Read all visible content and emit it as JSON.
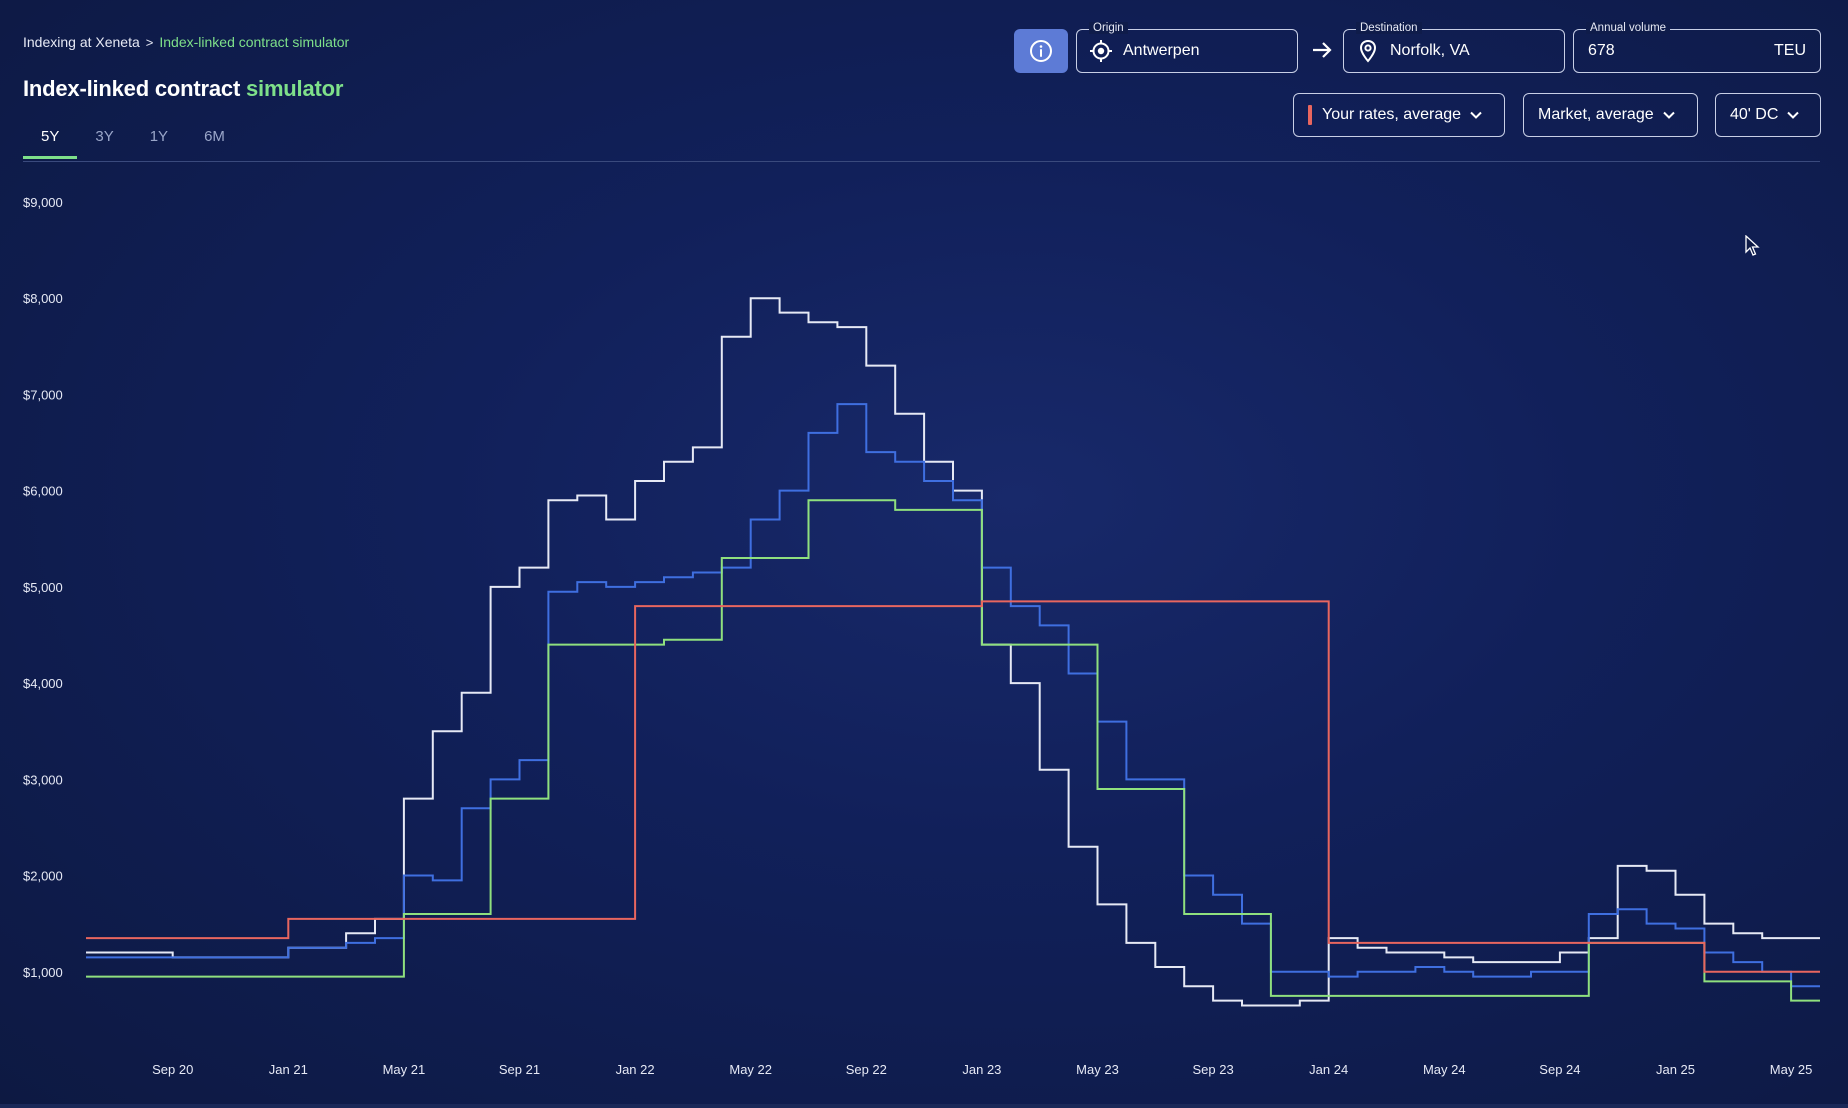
{
  "breadcrumb": {
    "root": "Indexing at Xeneta",
    "separator": ">",
    "current": "Index-linked contract simulator"
  },
  "title": {
    "main": "Index-linked contract",
    "accent": "simulator"
  },
  "tabs": [
    {
      "label": "5Y",
      "active": true
    },
    {
      "label": "3Y",
      "active": false
    },
    {
      "label": "1Y",
      "active": false
    },
    {
      "label": "6M",
      "active": false
    }
  ],
  "origin": {
    "label": "Origin",
    "value": "Antwerpen",
    "icon": "crosshair-icon"
  },
  "destination": {
    "label": "Destination",
    "value": "Norfolk, VA",
    "icon": "map-pin-icon"
  },
  "volume": {
    "label": "Annual volume",
    "value": "678",
    "unit": "TEU"
  },
  "filters": {
    "rates": "Your rates, average",
    "market": "Market, average",
    "container": "40' DC"
  },
  "colors": {
    "background": "#0f1b46",
    "accent_green": "#7ee08a",
    "info_button": "#5d7bd6",
    "series_white": "#e6e9f5",
    "series_blue": "#3f6fe0",
    "series_green": "#8fe07e",
    "series_red": "#e8665f"
  },
  "chart_data": {
    "type": "line",
    "step": true,
    "x_unit": "month",
    "x_range": [
      "2020-06",
      "2025-06"
    ],
    "ylim": [
      0,
      9000
    ],
    "y_ticks": [
      "$1,000",
      "$2,000",
      "$3,000",
      "$4,000",
      "$5,000",
      "$6,000",
      "$7,000",
      "$8,000",
      "$9,000"
    ],
    "y_tick_values": [
      1000,
      2000,
      3000,
      4000,
      5000,
      6000,
      7000,
      8000,
      9000
    ],
    "x_ticks": [
      "Sep 20",
      "Jan 21",
      "May 21",
      "Sep 21",
      "Jan 22",
      "May 22",
      "Sep 22",
      "Jan 23",
      "May 23",
      "Sep 23",
      "Jan 24",
      "May 24",
      "Sep 24",
      "Jan 25",
      "May 25"
    ],
    "x_tick_values": [
      "2020-09",
      "2021-01",
      "2021-05",
      "2021-09",
      "2022-01",
      "2022-05",
      "2022-09",
      "2023-01",
      "2023-05",
      "2023-09",
      "2024-01",
      "2024-05",
      "2024-09",
      "2025-01",
      "2025-05"
    ],
    "grid": false,
    "series": [
      {
        "color": "#e6e9f5",
        "x": [
          "2020-06",
          "2020-09",
          "2021-01",
          "2021-03",
          "2021-04",
          "2021-05",
          "2021-06",
          "2021-07",
          "2021-08",
          "2021-09",
          "2021-10",
          "2021-11",
          "2021-12",
          "2022-01",
          "2022-02",
          "2022-03",
          "2022-04",
          "2022-05",
          "2022-06",
          "2022-07",
          "2022-08",
          "2022-09",
          "2022-10",
          "2022-11",
          "2022-12",
          "2023-01",
          "2023-02",
          "2023-03",
          "2023-04",
          "2023-05",
          "2023-06",
          "2023-07",
          "2023-08",
          "2023-09",
          "2023-10",
          "2023-11",
          "2023-12",
          "2024-01",
          "2024-02",
          "2024-03",
          "2024-04",
          "2024-05",
          "2024-06",
          "2024-07",
          "2024-08",
          "2024-09",
          "2024-10",
          "2024-11",
          "2024-12",
          "2025-01",
          "2025-02",
          "2025-03",
          "2025-04",
          "2025-05",
          "2025-06"
        ],
        "y": [
          1200,
          1150,
          1250,
          1400,
          1550,
          2800,
          3500,
          3900,
          5000,
          5200,
          5900,
          5950,
          5700,
          6100,
          6300,
          6450,
          7600,
          8000,
          7850,
          7750,
          7700,
          7300,
          6800,
          6300,
          6000,
          4400,
          4000,
          3100,
          2300,
          1700,
          1300,
          1050,
          850,
          700,
          650,
          650,
          700,
          1350,
          1250,
          1200,
          1200,
          1150,
          1100,
          1100,
          1100,
          1200,
          1350,
          2100,
          2050,
          1800,
          1500,
          1400,
          1350,
          1350,
          1350
        ]
      },
      {
        "color": "#3f6fe0",
        "x": [
          "2020-06",
          "2020-09",
          "2021-01",
          "2021-03",
          "2021-04",
          "2021-05",
          "2021-06",
          "2021-07",
          "2021-08",
          "2021-09",
          "2021-10",
          "2021-11",
          "2021-12",
          "2022-01",
          "2022-02",
          "2022-03",
          "2022-04",
          "2022-05",
          "2022-06",
          "2022-07",
          "2022-08",
          "2022-09",
          "2022-10",
          "2022-11",
          "2022-12",
          "2023-01",
          "2023-02",
          "2023-03",
          "2023-04",
          "2023-05",
          "2023-06",
          "2023-07",
          "2023-08",
          "2023-09",
          "2023-10",
          "2023-11",
          "2023-12",
          "2024-01",
          "2024-02",
          "2024-03",
          "2024-04",
          "2024-05",
          "2024-06",
          "2024-07",
          "2024-08",
          "2024-09",
          "2024-10",
          "2024-11",
          "2024-12",
          "2025-01",
          "2025-02",
          "2025-03",
          "2025-04",
          "2025-05",
          "2025-06"
        ],
        "y": [
          1150,
          1150,
          1250,
          1300,
          1350,
          2000,
          1950,
          2700,
          3000,
          3200,
          4950,
          5050,
          5000,
          5050,
          5100,
          5150,
          5200,
          5700,
          6000,
          6600,
          6900,
          6400,
          6300,
          6100,
          5900,
          5200,
          4800,
          4600,
          4100,
          3600,
          3000,
          3000,
          2000,
          1800,
          1500,
          1000,
          1000,
          950,
          1000,
          1000,
          1050,
          1000,
          950,
          950,
          1000,
          1000,
          1600,
          1650,
          1500,
          1450,
          1200,
          1100,
          1000,
          850,
          850
        ]
      },
      {
        "color": "#8fe07e",
        "x": [
          "2020-06",
          "2021-05",
          "2021-06",
          "2021-07",
          "2021-08",
          "2021-09",
          "2021-10",
          "2021-11",
          "2021-12",
          "2022-01",
          "2022-02",
          "2022-03",
          "2022-04",
          "2022-05",
          "2022-06",
          "2022-07",
          "2022-08",
          "2022-09",
          "2022-10",
          "2022-11",
          "2022-12",
          "2023-01",
          "2023-02",
          "2023-03",
          "2023-04",
          "2023-05",
          "2023-06",
          "2023-07",
          "2023-08",
          "2023-09",
          "2023-10",
          "2023-11",
          "2023-12",
          "2024-01",
          "2024-02",
          "2024-03",
          "2024-04",
          "2024-05",
          "2024-06",
          "2024-07",
          "2024-08",
          "2024-09",
          "2024-10",
          "2024-11",
          "2024-12",
          "2025-01",
          "2025-02",
          "2025-03",
          "2025-04",
          "2025-05",
          "2025-06"
        ],
        "y": [
          950,
          1600,
          1600,
          1600,
          2800,
          2800,
          4400,
          4400,
          4400,
          4400,
          4450,
          4450,
          5300,
          5300,
          5300,
          5900,
          5900,
          5900,
          5800,
          5800,
          5800,
          4400,
          4400,
          4400,
          4400,
          2900,
          2900,
          2900,
          1600,
          1600,
          1600,
          750,
          750,
          750,
          750,
          750,
          750,
          750,
          750,
          750,
          750,
          750,
          1300,
          1300,
          1300,
          1300,
          900,
          900,
          900,
          700,
          700
        ]
      },
      {
        "color": "#e8665f",
        "x": [
          "2020-06",
          "2021-01",
          "2021-02",
          "2021-03",
          "2021-04",
          "2021-05",
          "2021-06",
          "2021-07",
          "2021-08",
          "2021-09",
          "2021-10",
          "2021-11",
          "2021-12",
          "2022-01",
          "2022-02",
          "2022-03",
          "2022-04",
          "2022-05",
          "2022-06",
          "2022-07",
          "2022-08",
          "2022-09",
          "2022-10",
          "2022-11",
          "2022-12",
          "2023-01",
          "2023-02",
          "2023-03",
          "2023-04",
          "2023-05",
          "2023-06",
          "2023-07",
          "2023-08",
          "2023-09",
          "2023-10",
          "2023-11",
          "2023-12",
          "2024-01",
          "2024-02",
          "2024-03",
          "2024-04",
          "2024-05",
          "2024-06",
          "2024-07",
          "2024-08",
          "2024-09",
          "2024-10",
          "2024-11",
          "2024-12",
          "2025-01",
          "2025-02",
          "2025-03",
          "2025-04",
          "2025-05",
          "2025-06"
        ],
        "y": [
          1350,
          1550,
          1550,
          1550,
          1550,
          1550,
          1550,
          1550,
          1550,
          1550,
          1550,
          1550,
          1550,
          4800,
          4800,
          4800,
          4800,
          4800,
          4800,
          4800,
          4800,
          4800,
          4800,
          4800,
          4800,
          4850,
          4850,
          4850,
          4850,
          4850,
          4850,
          4850,
          4850,
          4850,
          4850,
          4850,
          4850,
          1300,
          1300,
          1300,
          1300,
          1300,
          1300,
          1300,
          1300,
          1300,
          1300,
          1300,
          1300,
          1300,
          1000,
          1000,
          1000,
          1000,
          1000
        ]
      }
    ]
  }
}
